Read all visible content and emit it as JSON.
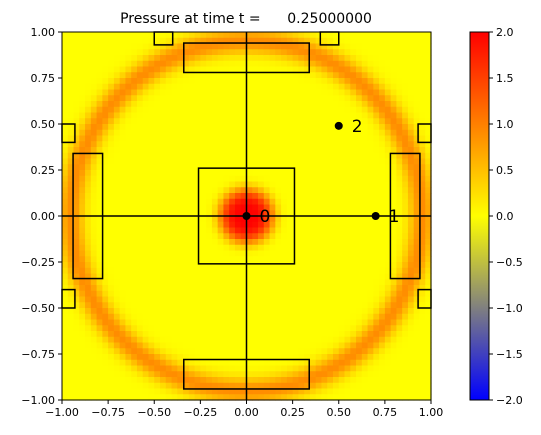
{
  "chart_data": {
    "type": "heatmap",
    "title": "Pressure at time t =      0.25000000",
    "xlim": [
      -1.0,
      1.0
    ],
    "ylim": [
      -1.0,
      1.0
    ],
    "xticks": [
      -1.0,
      -0.75,
      -0.5,
      -0.25,
      0.0,
      0.25,
      0.5,
      0.75,
      1.0
    ],
    "yticks": [
      -1.0,
      -0.75,
      -0.5,
      -0.25,
      0.0,
      0.25,
      0.5,
      0.75,
      1.0
    ],
    "xtick_labels": [
      "−1.00",
      "−0.75",
      "−0.50",
      "−0.25",
      "0.00",
      "0.25",
      "0.50",
      "0.75",
      "1.00"
    ],
    "ytick_labels": [
      "−1.00",
      "−0.75",
      "−0.50",
      "−0.25",
      "0.00",
      "0.25",
      "0.50",
      "0.75",
      "1.00"
    ],
    "grid": false,
    "field": {
      "description_of_values": "pressure",
      "center_peak": {
        "x": 0.0,
        "y": 0.0,
        "value": 2.0,
        "radius": 0.15
      },
      "wavefront": {
        "radius": 0.95,
        "value": 0.9,
        "width": 0.14
      },
      "background": 0.0
    },
    "colormap": {
      "vmin": -2.0,
      "vmax": 2.0,
      "stops": [
        {
          "value": -2.0,
          "color": "#0000ff"
        },
        {
          "value": 0.0,
          "color": "#ffff00"
        },
        {
          "value": 2.0,
          "color": "#ff0000"
        }
      ]
    },
    "colorbar": {
      "ticks": [
        2.0,
        1.5,
        1.0,
        0.5,
        0.0,
        -0.5,
        -1.0,
        -1.5,
        -2.0
      ],
      "tick_labels": [
        "2.0",
        "1.5",
        "1.0",
        "0.5",
        "0.0",
        "−0.5",
        "−1.0",
        "−1.5",
        "−2.0"
      ]
    },
    "probes": [
      {
        "label": "0",
        "x": 0.0,
        "y": 0.0
      },
      {
        "label": "1",
        "x": 0.7,
        "y": 0.0
      },
      {
        "label": "2",
        "x": 0.5,
        "y": 0.49
      }
    ],
    "crosshair": {
      "x": 0.0,
      "y": 0.0
    },
    "rectangles": [
      {
        "x0": -0.26,
        "y0": -0.26,
        "x1": 0.26,
        "y1": 0.26
      },
      {
        "x0": -0.34,
        "y0": 0.78,
        "x1": 0.34,
        "y1": 0.94
      },
      {
        "x0": -0.34,
        "y0": -0.94,
        "x1": 0.34,
        "y1": -0.78
      },
      {
        "x0": -0.94,
        "y0": -0.34,
        "x1": -0.78,
        "y1": 0.34
      },
      {
        "x0": 0.78,
        "y0": -0.34,
        "x1": 0.94,
        "y1": 0.34
      },
      {
        "x0": -0.5,
        "y0": 0.93,
        "x1": -0.4,
        "y1": 1.0
      },
      {
        "x0": 0.4,
        "y0": 0.93,
        "x1": 0.5,
        "y1": 1.0
      },
      {
        "x0": -1.0,
        "y0": 0.4,
        "x1": -0.93,
        "y1": 0.5
      },
      {
        "x0": -1.0,
        "y0": -0.5,
        "x1": -0.93,
        "y1": -0.4
      },
      {
        "x0": 0.93,
        "y0": 0.4,
        "x1": 1.0,
        "y1": 0.5
      },
      {
        "x0": 0.93,
        "y0": -0.5,
        "x1": 1.0,
        "y1": -0.4
      }
    ]
  }
}
